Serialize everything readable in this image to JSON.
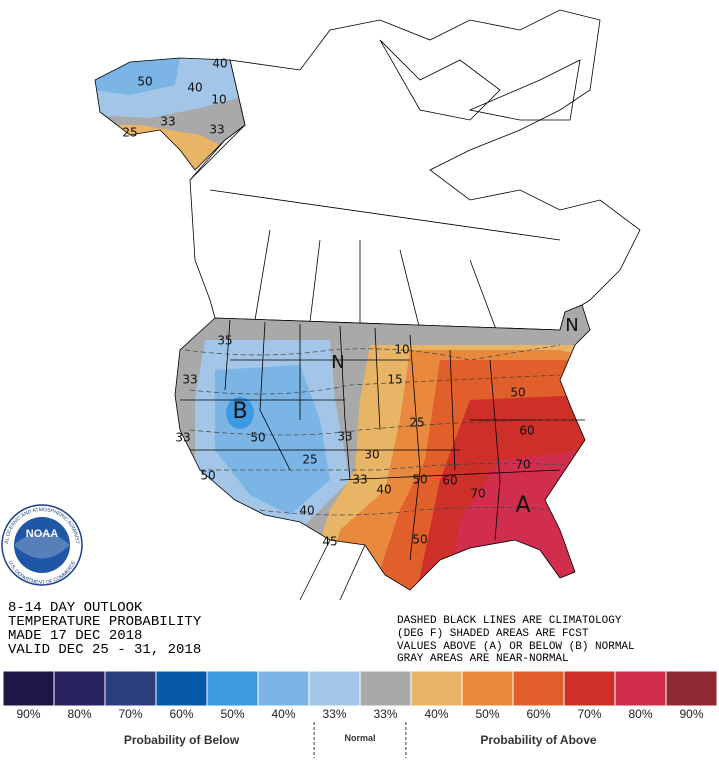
{
  "map": {
    "title_lines": [
      "8-14 DAY OUTLOOK",
      "TEMPERATURE PROBABILITY",
      "MADE  17 DEC 2018",
      "VALID  DEC 25 - 31, 2018"
    ],
    "note_lines": [
      "DASHED BLACK LINES ARE CLIMATOLOGY",
      "(DEG F) SHADED AREAS ARE FCST",
      "VALUES ABOVE (A) OR BELOW (B) NORMAL",
      "GRAY AREAS ARE NEAR-NORMAL"
    ],
    "labels": [
      "50",
      "40",
      "10",
      "40",
      "25",
      "33",
      "33",
      "35",
      "33",
      "33",
      "50",
      "B",
      "50",
      "33",
      "25",
      "40",
      "N",
      "45",
      "40",
      "33",
      "30",
      "15",
      "10",
      "25",
      "50",
      "60",
      "50",
      "60",
      "70",
      "70",
      "A",
      "N",
      "50"
    ],
    "logo": {
      "name": "NOAA",
      "ring_top": "NATIONAL OCEANIC AND ATMOSPHERIC ADMINISTRATION",
      "ring_bottom": "U.S. DEPARTMENT OF COMMERCE"
    }
  },
  "legend": {
    "items": [
      {
        "label": "90%",
        "color": "#1f1646"
      },
      {
        "label": "80%",
        "color": "#27215e"
      },
      {
        "label": "70%",
        "color": "#2c3f7c"
      },
      {
        "label": "60%",
        "color": "#075aa6"
      },
      {
        "label": "50%",
        "color": "#3e9ae0"
      },
      {
        "label": "40%",
        "color": "#7ab5e6"
      },
      {
        "label": "33%",
        "color": "#a3c6e8"
      },
      {
        "label": "33%",
        "color": "#a9a9a9"
      },
      {
        "label": "40%",
        "color": "#e8b465"
      },
      {
        "label": "50%",
        "color": "#e8893e"
      },
      {
        "label": "60%",
        "color": "#e15f2b"
      },
      {
        "label": "70%",
        "color": "#cf2f29"
      },
      {
        "label": "80%",
        "color": "#d12d4c"
      },
      {
        "label": "90%",
        "color": "#8d2a33"
      }
    ],
    "groups": [
      "Probability of Below",
      "Normal",
      "Probability of Above"
    ]
  }
}
